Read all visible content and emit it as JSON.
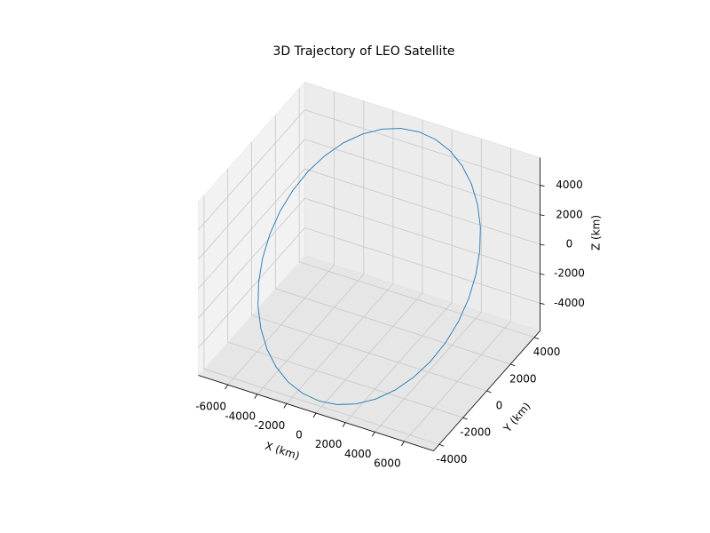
{
  "chart_data": {
    "type": "line3d",
    "title": "3D Trajectory of LEO Satellite",
    "xlabel": "X (km)",
    "ylabel": "Y (km)",
    "zlabel": "Z (km)",
    "color": "#1f77b4",
    "grid": true,
    "xlim": [
      -8000,
      8000
    ],
    "ylim": [
      -4480,
      4480
    ],
    "zlim": [
      -5870,
      5870
    ],
    "xticks": [
      -6000,
      -4000,
      -2000,
      0,
      2000,
      4000,
      6000
    ],
    "yticks": [
      -4000,
      -2000,
      0,
      2000,
      4000
    ],
    "zticks": [
      -4000,
      -2000,
      0,
      2000,
      4000
    ],
    "x": [
      6771,
      6668,
      6363,
      5864,
      5187,
      4352,
      3386,
      2316,
      1176,
      0,
      -1176,
      -2316,
      -3386,
      -4352,
      -5187,
      -5864,
      -6363,
      -6668,
      -6771,
      -6668,
      -6363,
      -5864,
      -5187,
      -4352,
      -3386,
      -2316,
      -1176,
      0,
      1176,
      2316,
      3386,
      4352,
      5187,
      5864,
      6363,
      6668,
      6771
    ],
    "y": [
      0,
      730,
      1438,
      2102,
      2702,
      3220,
      3641,
      3951,
      4140,
      4204,
      4140,
      3951,
      3641,
      3220,
      2702,
      2102,
      1438,
      730,
      0,
      -730,
      -1438,
      -2102,
      -2702,
      -3220,
      -3641,
      -3951,
      -4140,
      -4204,
      -4140,
      -3951,
      -3641,
      -3220,
      -2702,
      -2102,
      -1438,
      -730,
      0
    ],
    "z": [
      0,
      921,
      1815,
      2654,
      3411,
      4065,
      4596,
      4987,
      5226,
      5307,
      5226,
      4987,
      4596,
      4065,
      3411,
      2654,
      1815,
      921,
      0,
      -921,
      -1815,
      -2654,
      -3411,
      -4065,
      -4596,
      -4987,
      -5226,
      -5307,
      -5226,
      -4987,
      -4596,
      -4065,
      -3411,
      -2654,
      -1815,
      -921,
      0
    ]
  }
}
